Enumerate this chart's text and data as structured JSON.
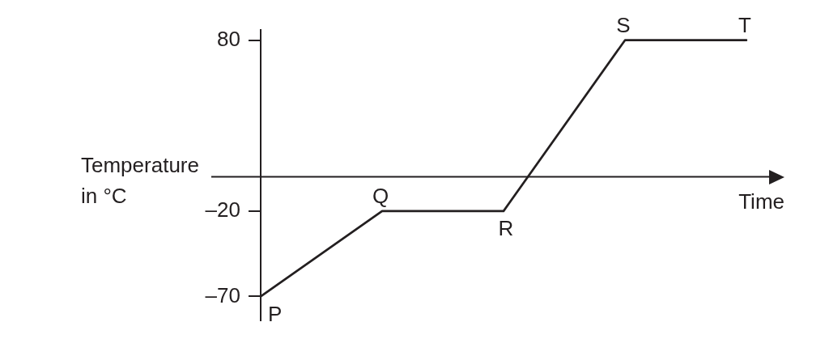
{
  "chart_data": {
    "type": "line",
    "xlabel": "Time",
    "ylabel": "Temperature in °C",
    "categories": [
      null,
      null,
      null,
      null,
      null
    ],
    "values": [
      -70,
      -20,
      -20,
      80,
      80
    ],
    "value_labels": [
      "P",
      "Q",
      "R",
      "S",
      "T"
    ],
    "color": "#231f20",
    "ylim": [
      -84,
      86
    ],
    "yticks": [
      80,
      {
        "value": -20,
        "label": "–20"
      },
      {
        "value": -70,
        "label": "–70"
      }
    ],
    "tick_labels": "y",
    "legend": false
  }
}
